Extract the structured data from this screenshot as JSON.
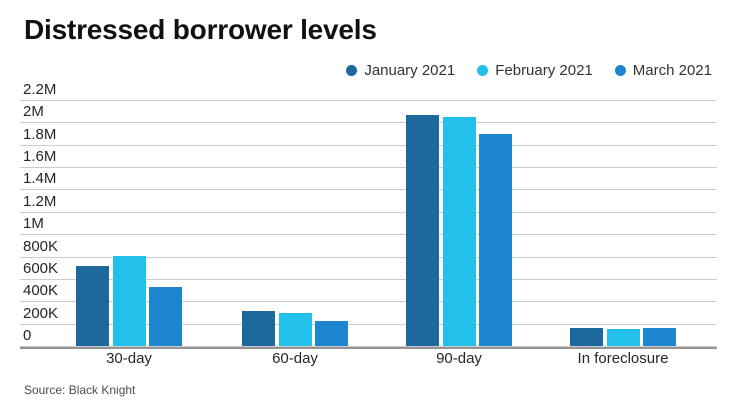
{
  "title": "Distressed borrower levels",
  "source_note": "Source: Black Knight",
  "colors": {
    "january": "#1d689c",
    "february": "#23c0ec",
    "march": "#1e86d1",
    "gridline": "#cccccc",
    "axis": "#949494"
  },
  "chart_data": {
    "type": "bar",
    "title": "Distressed borrower levels",
    "categories": [
      "30-day",
      "60-day",
      "90-day",
      "In foreclosure"
    ],
    "series": [
      {
        "name": "January 2021",
        "color": "#1d689c",
        "values": [
          720000,
          310000,
          2070000,
          160000
        ]
      },
      {
        "name": "February 2021",
        "color": "#23c0ec",
        "values": [
          805000,
          295000,
          2050000,
          153000
        ]
      },
      {
        "name": "March 2021",
        "color": "#1e86d1",
        "values": [
          530000,
          220000,
          1900000,
          158000
        ]
      }
    ],
    "xlabel": "",
    "ylabel": "",
    "ylim": [
      0,
      2200000
    ],
    "y_ticks": [
      {
        "label": "2.2M",
        "value": 2200000
      },
      {
        "label": "2M",
        "value": 2000000
      },
      {
        "label": "1.8M",
        "value": 1800000
      },
      {
        "label": "1.6M",
        "value": 1600000
      },
      {
        "label": "1.4M",
        "value": 1400000
      },
      {
        "label": "1.2M",
        "value": 1200000
      },
      {
        "label": "1M",
        "value": 1000000
      },
      {
        "label": "800K",
        "value": 800000
      },
      {
        "label": "600K",
        "value": 600000
      },
      {
        "label": "400K",
        "value": 400000
      },
      {
        "label": "200K",
        "value": 200000
      },
      {
        "label": "0",
        "value": 0
      }
    ],
    "grid": true,
    "legend_position": "top-right",
    "source": "Source: Black Knight"
  }
}
